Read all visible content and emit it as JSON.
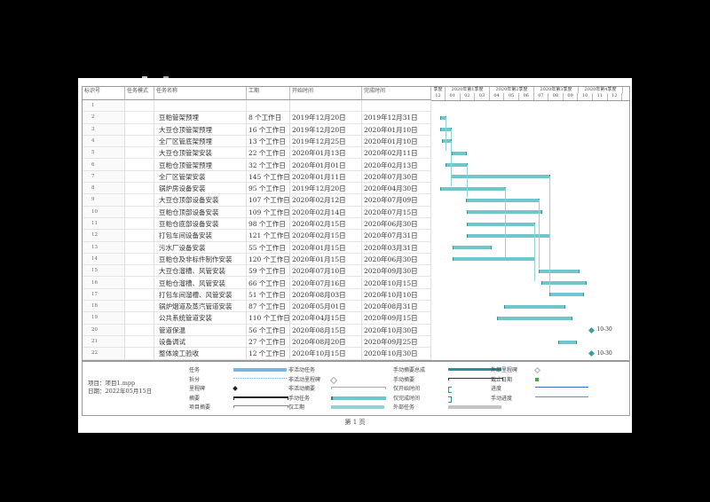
{
  "columns": {
    "id": "标识号",
    "mode": "任务模式",
    "name": "任务名称",
    "duration": "工期",
    "start": "开始时间",
    "finish": "完成时间"
  },
  "timescale": {
    "quarters": [
      "季度",
      "2020年第1季度",
      "2020年第2季度",
      "2020年第3季度",
      "2020年第4季度"
    ],
    "months": [
      "12",
      "01",
      "02",
      "03",
      "04",
      "05",
      "06",
      "07",
      "08",
      "09",
      "10",
      "11",
      "12"
    ]
  },
  "tasks": [
    {
      "id": "1",
      "name": "",
      "duration": "",
      "start": "",
      "finish": ""
    },
    {
      "id": "2",
      "name": "豆粕管架预埋",
      "duration": "8 个工作日",
      "start": "2019年12月20日",
      "finish": "2019年12月31日"
    },
    {
      "id": "3",
      "name": "大豆仓顶管架预埋",
      "duration": "16 个工作日",
      "start": "2019年12月20日",
      "finish": "2020年01月10日"
    },
    {
      "id": "4",
      "name": "全厂区管底架预埋",
      "duration": "13 个工作日",
      "start": "2019年12月25日",
      "finish": "2020年01月10日"
    },
    {
      "id": "5",
      "name": "大豆仓顶管架安装",
      "duration": "22 个工作日",
      "start": "2020年01月13日",
      "finish": "2020年02月11日"
    },
    {
      "id": "6",
      "name": "豆粕仓顶管架预埋",
      "duration": "32 个工作日",
      "start": "2020年01月01日",
      "finish": "2020年02月13日"
    },
    {
      "id": "7",
      "name": "全厂区管架安装",
      "duration": "145 个工作日",
      "start": "2020年01月11日",
      "finish": "2020年07月30日"
    },
    {
      "id": "8",
      "name": "锅炉房设备安装",
      "duration": "95 个工作日",
      "start": "2019年12月20日",
      "finish": "2020年04月30日"
    },
    {
      "id": "9",
      "name": "大豆仓顶部设备安装",
      "duration": "107 个工作日",
      "start": "2020年02月12日",
      "finish": "2020年07月09日"
    },
    {
      "id": "10",
      "name": "豆粕仓顶部设备安装",
      "duration": "109 个工作日",
      "start": "2020年02月14日",
      "finish": "2020年07月15日"
    },
    {
      "id": "11",
      "name": "豆粕仓底部设备安装",
      "duration": "98 个工作日",
      "start": "2020年02月15日",
      "finish": "2020年06月30日"
    },
    {
      "id": "12",
      "name": "打包车间设备安装",
      "duration": "121 个工作日",
      "start": "2020年02月15日",
      "finish": "2020年07月31日"
    },
    {
      "id": "13",
      "name": "污水厂设备安装",
      "duration": "55 个工作日",
      "start": "2020年01月15日",
      "finish": "2020年03月31日"
    },
    {
      "id": "14",
      "name": "豆粕仓及非标件制作安装",
      "duration": "120 个工作日",
      "start": "2020年01月15日",
      "finish": "2020年06月30日"
    },
    {
      "id": "15",
      "name": "大豆仓溜槽、风管安装",
      "duration": "59 个工作日",
      "start": "2020年07月10日",
      "finish": "2020年09月30日"
    },
    {
      "id": "16",
      "name": "豆粕仓溜槽、风管安装",
      "duration": "66 个工作日",
      "start": "2020年07月16日",
      "finish": "2020年10月15日"
    },
    {
      "id": "17",
      "name": "打包车间溜槽、风管安装",
      "duration": "51 个工作日",
      "start": "2020年08月03日",
      "finish": "2020年10月10日"
    },
    {
      "id": "18",
      "name": "锅炉烟道及蒸汽管道安装",
      "duration": "87 个工作日",
      "start": "2020年05月01日",
      "finish": "2020年08月31日"
    },
    {
      "id": "19",
      "name": "公共系统管道安装",
      "duration": "110 个工作日",
      "start": "2020年04月15日",
      "finish": "2020年09月15日"
    },
    {
      "id": "20",
      "name": "管道保温",
      "duration": "56 个工作日",
      "start": "2020年08月15日",
      "finish": "2020年10月30日"
    },
    {
      "id": "21",
      "name": "设备调试",
      "duration": "27 个工作日",
      "start": "2020年08月20日",
      "finish": "2020年09月25日"
    },
    {
      "id": "22",
      "name": "整体竣工验收",
      "duration": "12 个工作日",
      "start": "2020年10月15日",
      "finish": "2020年10月30日"
    }
  ],
  "milestone_labels": {
    "r20": "10-30",
    "r22": "10-30"
  },
  "legend": {
    "project": "项目：项目1.mpp",
    "date": "日期：2022年05月15日",
    "items": [
      "任务",
      "拆分",
      "里程碑",
      "摘要",
      "项目摘要",
      "非活动任务",
      "非活动里程碑",
      "非活动摘要",
      "手动任务",
      "仅工期",
      "手动摘要总成",
      "手动摘要",
      "仅开始时间",
      "仅完成时间",
      "外部任务",
      "外部里程碑",
      "截止日期",
      "进度",
      "手动进度"
    ]
  },
  "footer": "第 1 页",
  "colors": {
    "bar": "#6fc6cc",
    "bar_edge": "#3a8f95",
    "task_legend": "#7fb3e0",
    "progress": "#2f6fbf"
  }
}
